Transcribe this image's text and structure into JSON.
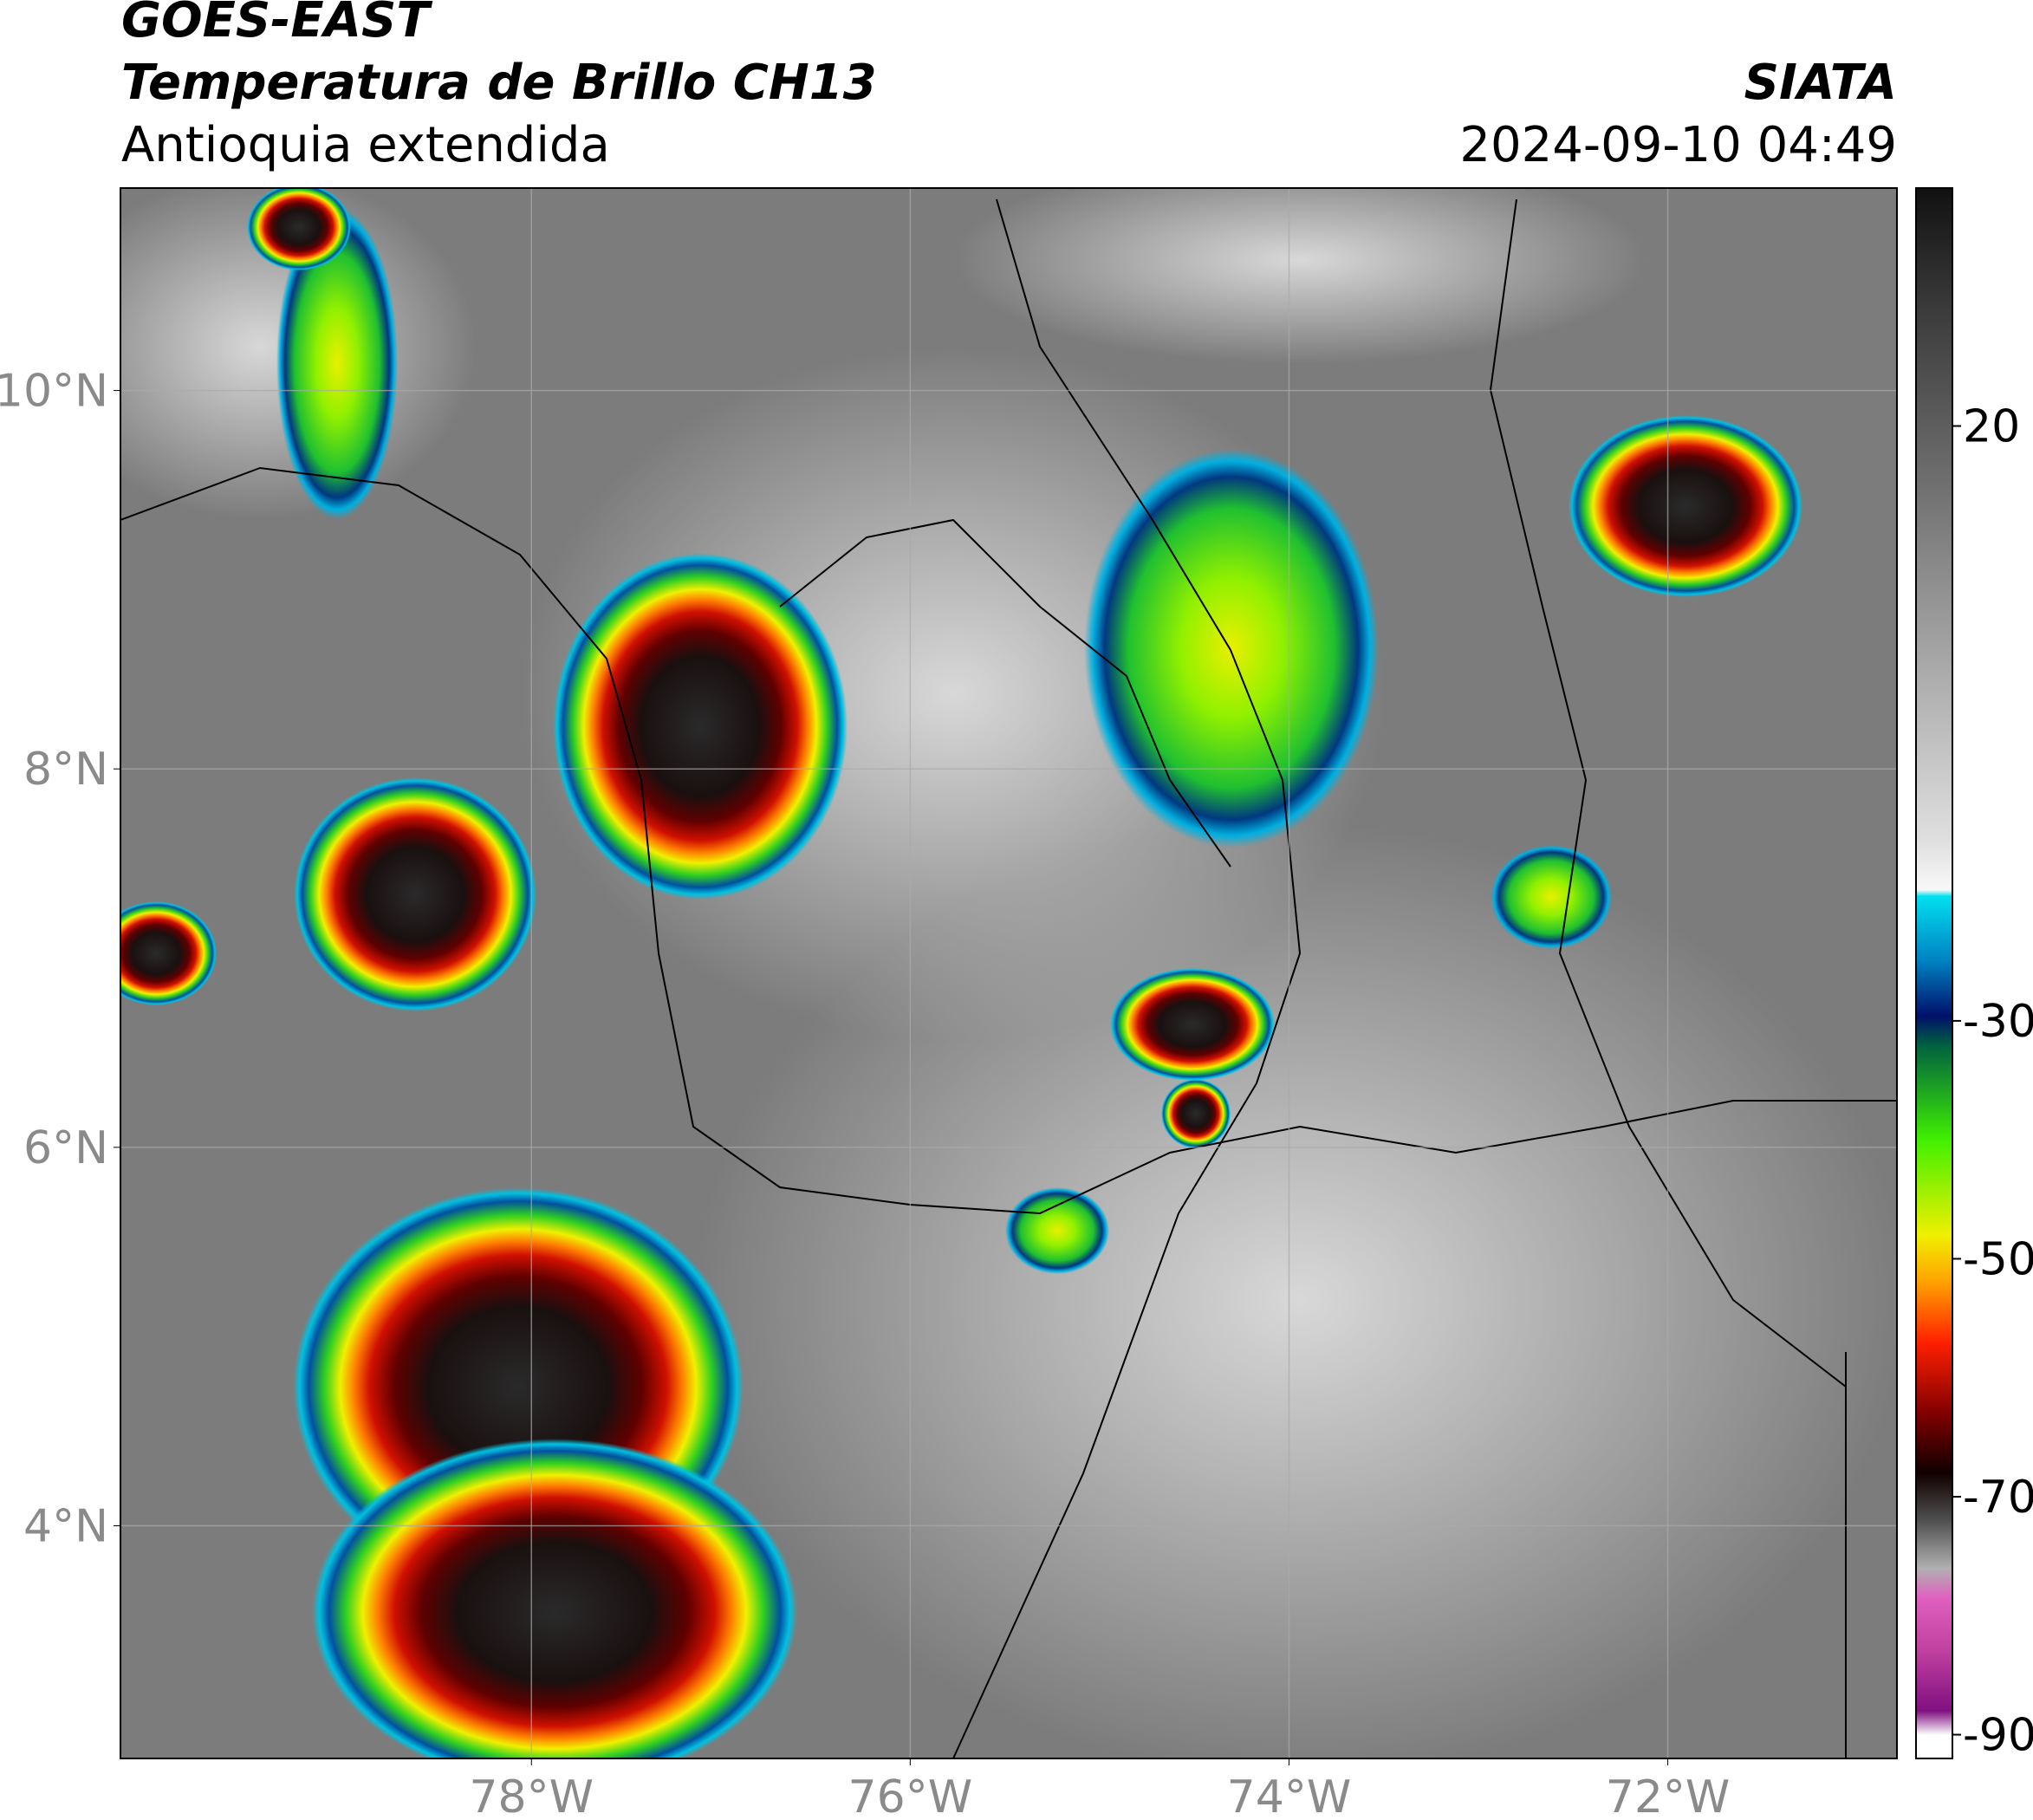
{
  "header": {
    "title": "GOES-EAST",
    "subtitle": "Temperatura de Brillo CH13",
    "region": "Antioquia extendida",
    "source": "SIATA",
    "datetime": "2024-09-10 04:49"
  },
  "map": {
    "lonlim": [
      -80.17,
      -70.79
    ],
    "latlim": [
      2.77,
      11.07
    ],
    "grid": true,
    "lonticks": [
      {
        "value": -78,
        "label": "78°W"
      },
      {
        "value": -76,
        "label": "76°W"
      },
      {
        "value": -74,
        "label": "74°W"
      },
      {
        "value": -72,
        "label": "72°W"
      }
    ],
    "latticks": [
      {
        "value": 10,
        "label": "10°N"
      },
      {
        "value": 8,
        "label": "8°N"
      },
      {
        "value": 6,
        "label": "6°N"
      },
      {
        "value": 4,
        "label": "4°N"
      }
    ]
  },
  "colorbar": {
    "range": [
      -92,
      40
    ],
    "ticks": [
      20,
      -30,
      -50,
      -70,
      -90
    ],
    "stops": [
      {
        "value": 40,
        "color": "#111111"
      },
      {
        "value": 30,
        "color": "#3a3a3a"
      },
      {
        "value": 15,
        "color": "#707070"
      },
      {
        "value": 0,
        "color": "#a8a8a8"
      },
      {
        "value": -15,
        "color": "#e0e0e0"
      },
      {
        "value": -19,
        "color": "#f8f8f8"
      },
      {
        "value": -19.5,
        "color": "#00e0f0"
      },
      {
        "value": -25,
        "color": "#0080c0"
      },
      {
        "value": -29.6,
        "color": "#00106a"
      },
      {
        "value": -32,
        "color": "#006040"
      },
      {
        "value": -40,
        "color": "#40f000"
      },
      {
        "value": -48,
        "color": "#f0f000"
      },
      {
        "value": -52,
        "color": "#ffa000"
      },
      {
        "value": -57,
        "color": "#ff2000"
      },
      {
        "value": -63,
        "color": "#800000"
      },
      {
        "value": -68,
        "color": "#100000"
      },
      {
        "value": -72,
        "color": "#505050"
      },
      {
        "value": -76,
        "color": "#b0b0b0"
      },
      {
        "value": -78.5,
        "color": "#e060c0"
      },
      {
        "value": -83,
        "color": "#c040a0"
      },
      {
        "value": -88,
        "color": "#801080"
      },
      {
        "value": -90,
        "color": "#ffffff"
      },
      {
        "value": -92,
        "color": "#ffffff"
      }
    ]
  }
}
